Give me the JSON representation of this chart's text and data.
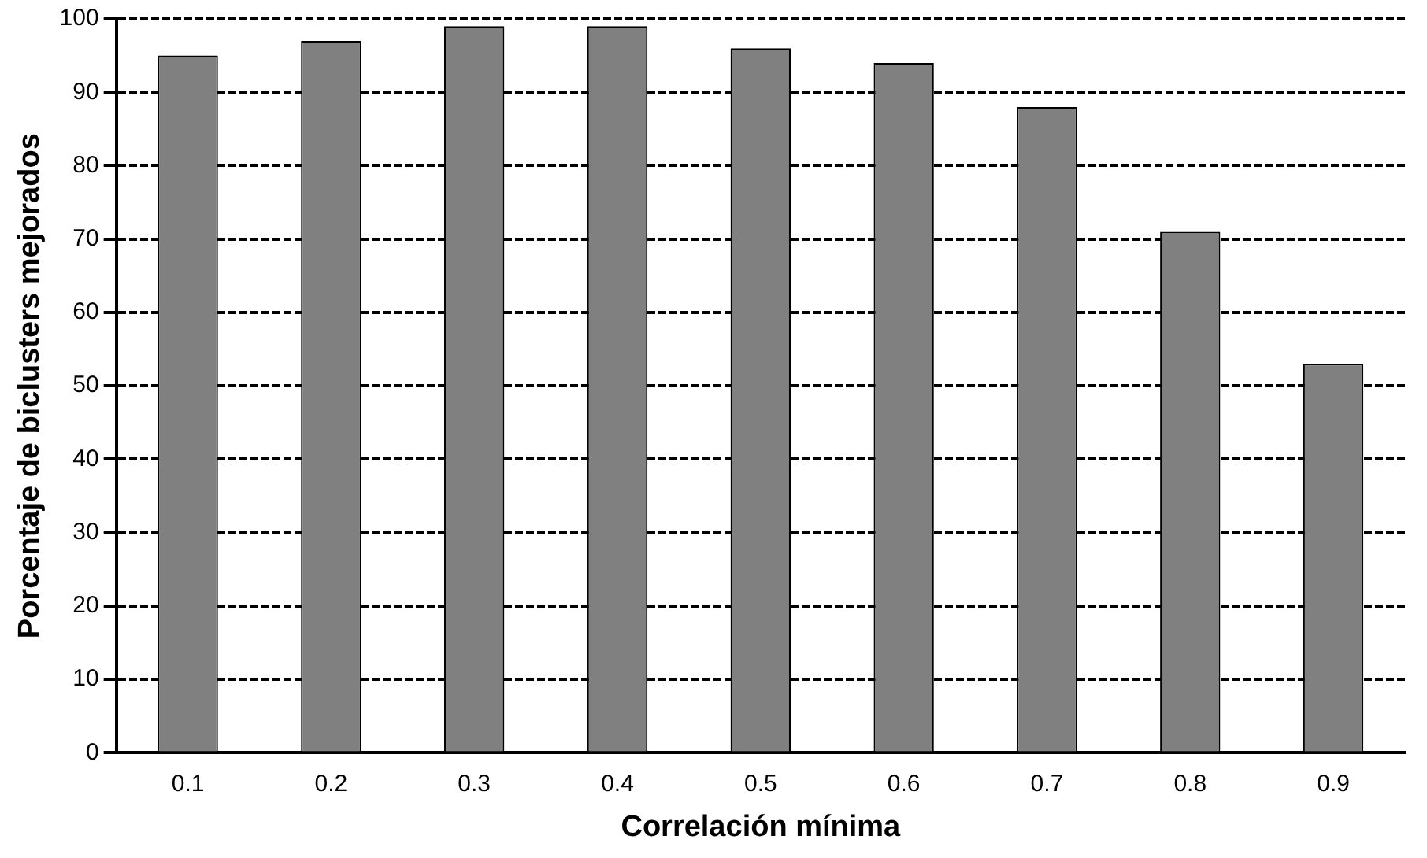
{
  "chart_data": {
    "type": "bar",
    "xlabel": "Correlación mínima",
    "ylabel": "Porcentaje de biclusters mejorados",
    "categories": [
      "0.1",
      "0.2",
      "0.3",
      "0.4",
      "0.5",
      "0.6",
      "0.7",
      "0.8",
      "0.9"
    ],
    "values": [
      95,
      97,
      99,
      99,
      96,
      94,
      88,
      71,
      53
    ],
    "color": "#808080",
    "ylim": [
      0,
      100
    ],
    "yticks": [
      0,
      10,
      20,
      30,
      40,
      50,
      60,
      70,
      80,
      90,
      100
    ],
    "grid": "y",
    "legend": false
  }
}
